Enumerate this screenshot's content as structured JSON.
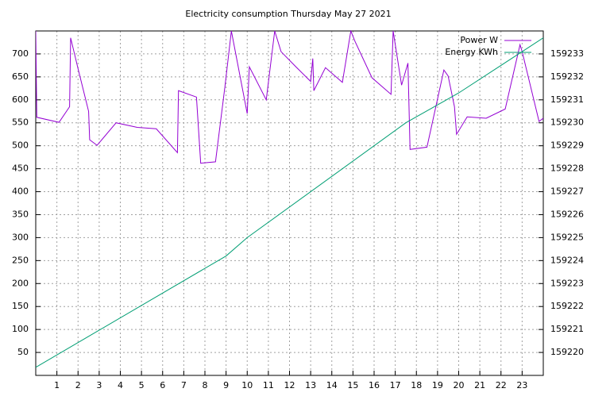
{
  "chart_data": {
    "type": "line",
    "title": "Electricity consumption Thursday May 27 2021",
    "xlim": [
      0,
      24
    ],
    "xticks": [
      1,
      2,
      3,
      4,
      5,
      6,
      7,
      8,
      9,
      10,
      11,
      12,
      13,
      14,
      15,
      16,
      17,
      18,
      19,
      20,
      21,
      22,
      23
    ],
    "ylim": [
      0,
      750
    ],
    "yticks": [
      50,
      100,
      150,
      200,
      250,
      300,
      350,
      400,
      450,
      500,
      550,
      600,
      650,
      700
    ],
    "y2lim": [
      159219,
      159234
    ],
    "y2ticks": [
      159220,
      159221,
      159222,
      159223,
      159224,
      159225,
      159226,
      159227,
      159228,
      159229,
      159230,
      159231,
      159232,
      159233
    ],
    "grid": true,
    "legend": "top-right",
    "series": [
      {
        "name": "Power W",
        "color": "#9400d3",
        "x": [
          0.0,
          0.05,
          1.1,
          1.6,
          1.65,
          2.0,
          2.5,
          2.55,
          2.9,
          3.8,
          4.8,
          5.7,
          6.7,
          6.75,
          7.6,
          7.8,
          8.5,
          8.95,
          9.25,
          10.0,
          10.1,
          10.9,
          11.3,
          11.6,
          12.3,
          13.0,
          13.1,
          13.15,
          13.7,
          14.5,
          14.9,
          15.1,
          15.9,
          16.8,
          16.9,
          17.3,
          17.6,
          17.7,
          18.5,
          19.3,
          19.5,
          19.8,
          19.9,
          20.4,
          21.3,
          22.2,
          22.9,
          23.0,
          23.8,
          24.0
        ],
        "values": [
          750,
          562,
          551,
          585,
          735,
          668,
          575,
          513,
          501,
          550,
          540,
          537,
          485,
          620,
          606,
          462,
          465,
          630,
          750,
          570,
          672,
          600,
          750,
          705,
          672,
          640,
          690,
          620,
          670,
          638,
          750,
          727,
          648,
          612,
          750,
          632,
          680,
          492,
          497,
          665,
          652,
          585,
          525,
          563,
          560,
          580,
          720,
          705,
          553,
          560
        ]
      },
      {
        "name": "Energy KWh",
        "color": "#009e73",
        "axis": "y2",
        "x": [
          0,
          2.5,
          9,
          10,
          17.5,
          20,
          23,
          24
        ],
        "values": [
          159219.35,
          159220.7,
          159224.2,
          159225,
          159230,
          159231.3,
          159233.1,
          159233.7
        ]
      }
    ]
  }
}
